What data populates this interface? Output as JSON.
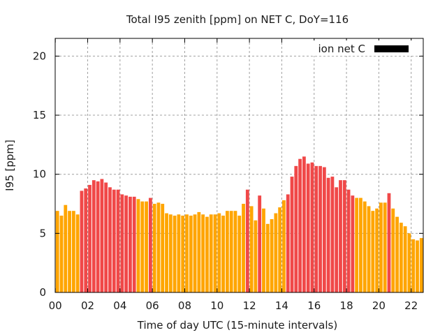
{
  "chart_data": {
    "type": "bar",
    "title": "Total I95 zenith [ppm] on NET C, DoY=116",
    "xlabel": "Time of day UTC (15-minute intervals)",
    "ylabel": "I95 [ppm]",
    "ylim": [
      0,
      21.5
    ],
    "xlim": [
      -0.5,
      90.5
    ],
    "grid": true,
    "legend": {
      "position": "top-right",
      "entries": [
        {
          "label": "ion net C",
          "color": "#000000"
        }
      ]
    },
    "y_ticks": [
      0,
      5,
      10,
      15,
      20
    ],
    "x_ticks": [
      {
        "index": 0,
        "label": "00"
      },
      {
        "index": 8,
        "label": "02"
      },
      {
        "index": 16,
        "label": "04"
      },
      {
        "index": 24,
        "label": "06"
      },
      {
        "index": 32,
        "label": "08"
      },
      {
        "index": 40,
        "label": "10"
      },
      {
        "index": 48,
        "label": "12"
      },
      {
        "index": 56,
        "label": "14"
      },
      {
        "index": 64,
        "label": "16"
      },
      {
        "index": 72,
        "label": "18"
      },
      {
        "index": 80,
        "label": "20"
      },
      {
        "index": 88,
        "label": "22"
      }
    ],
    "colors": {
      "normal": "#ffa500",
      "high": "#f04848"
    },
    "values": [
      6.9,
      6.5,
      7.4,
      6.9,
      6.9,
      6.6,
      8.6,
      8.8,
      9.1,
      9.5,
      9.4,
      9.6,
      9.3,
      8.9,
      8.7,
      8.7,
      8.3,
      8.2,
      8.1,
      8.1,
      7.9,
      7.7,
      7.7,
      8.0,
      7.5,
      7.6,
      7.5,
      6.7,
      6.6,
      6.5,
      6.6,
      6.5,
      6.6,
      6.5,
      6.6,
      6.8,
      6.6,
      6.4,
      6.6,
      6.6,
      6.7,
      6.5,
      6.9,
      6.9,
      6.9,
      6.5,
      7.5,
      8.7,
      7.3,
      6.1,
      8.2,
      7.1,
      5.8,
      6.2,
      6.7,
      7.2,
      7.8,
      8.3,
      9.8,
      10.7,
      11.3,
      11.5,
      10.9,
      11.0,
      10.7,
      10.7,
      10.6,
      9.7,
      9.8,
      8.9,
      9.5,
      9.5,
      8.7,
      8.2,
      8.0,
      8.0,
      7.7,
      7.3,
      6.9,
      7.1,
      7.6,
      7.6,
      8.4,
      7.1,
      6.4,
      5.9,
      5.6,
      5.0,
      4.5,
      4.4,
      4.6,
      4.8
    ],
    "categories": [
      "high",
      "high",
      "high",
      "high",
      "high",
      "high",
      "high",
      "high",
      "high",
      "high",
      "high",
      "high",
      "high",
      "high"
    ],
    "flags": [
      0,
      0,
      0,
      0,
      0,
      0,
      1,
      1,
      1,
      1,
      1,
      1,
      1,
      1,
      1,
      1,
      1,
      1,
      1,
      1,
      0,
      0,
      0,
      1,
      0,
      0,
      0,
      0,
      0,
      0,
      0,
      0,
      0,
      0,
      0,
      0,
      0,
      0,
      0,
      0,
      0,
      0,
      0,
      0,
      0,
      0,
      0,
      1,
      0,
      0,
      1,
      0,
      0,
      0,
      0,
      0,
      0,
      1,
      1,
      1,
      1,
      1,
      1,
      1,
      1,
      1,
      1,
      1,
      1,
      1,
      1,
      1,
      1,
      1,
      0,
      0,
      0,
      0,
      0,
      0,
      0,
      0,
      1,
      0,
      0,
      0,
      0,
      0,
      0,
      0,
      0,
      0
    ]
  }
}
